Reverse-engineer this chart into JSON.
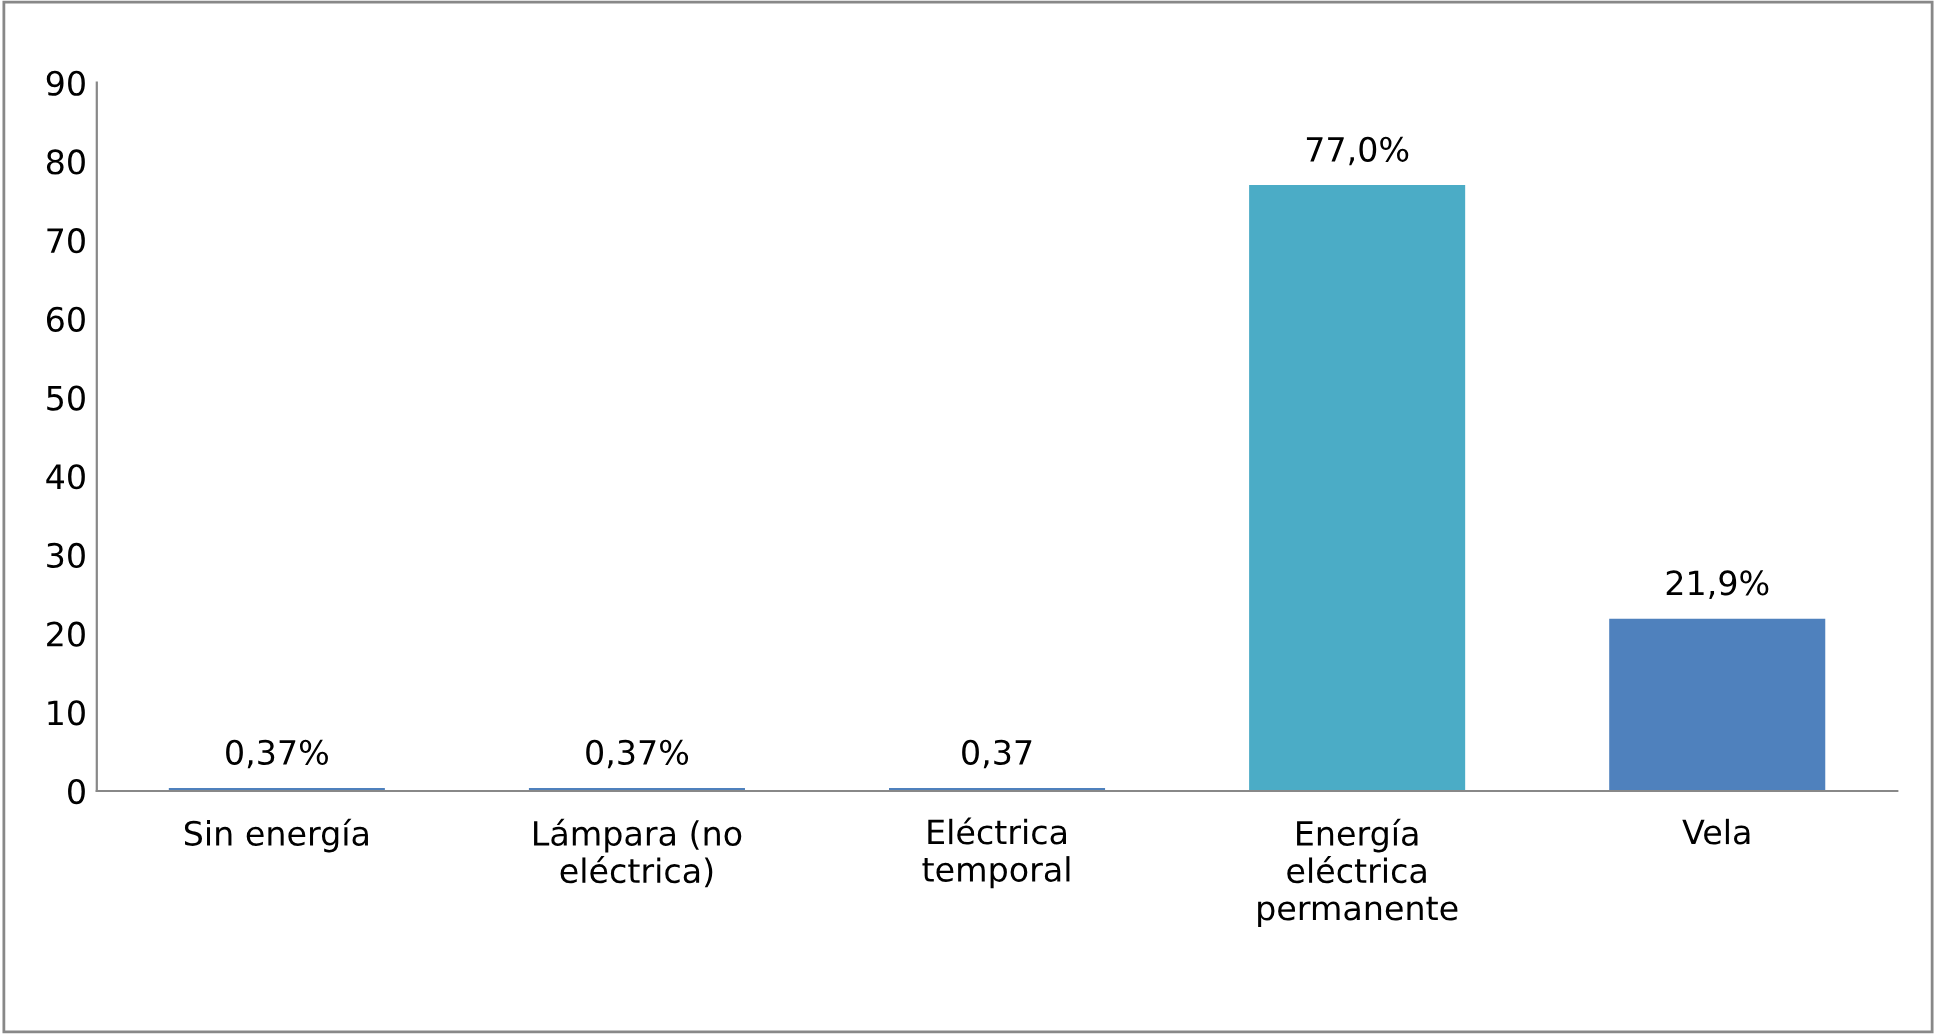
{
  "chart_data": {
    "type": "bar",
    "categories": [
      "Sin energía",
      "Lámpara (no eléctrica)",
      "Eléctrica temporal",
      "Energía eléctrica permanente",
      "Vela"
    ],
    "values": [
      0.37,
      0.37,
      0.37,
      77.0,
      21.9
    ],
    "colors": [
      "#4f81bd",
      "#4f81bd",
      "#4f81bd",
      "#4bacc6",
      "#4f81bd"
    ],
    "value_labels": [
      "0,37%",
      "0,37%",
      "0,37",
      "77,0%",
      "21,9%"
    ],
    "ylim": [
      0,
      90
    ],
    "yticks": [
      0,
      10,
      20,
      30,
      40,
      50,
      60,
      70,
      80,
      90
    ],
    "grid": false,
    "legend": false
  }
}
